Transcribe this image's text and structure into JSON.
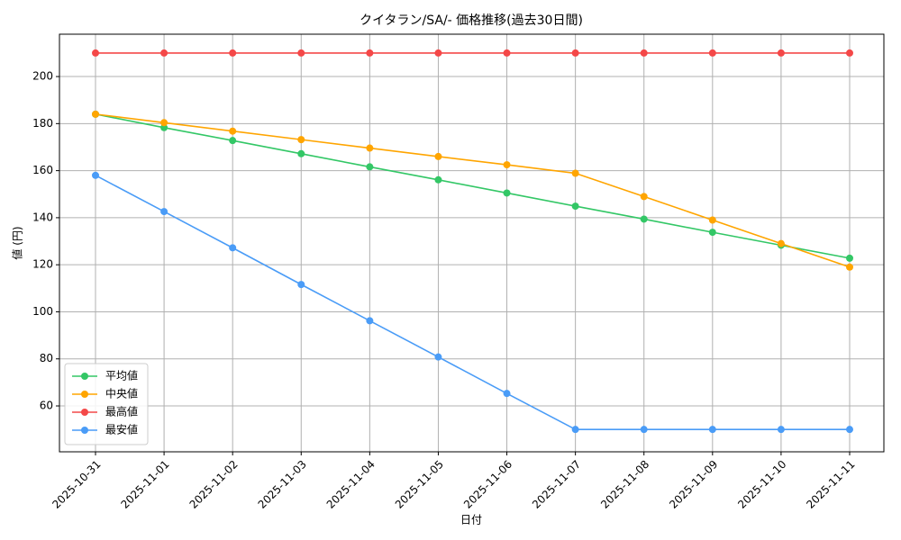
{
  "chart_data": {
    "type": "line",
    "title": "クイタラン/SA/- 価格推移(過去30日間)",
    "x_label": "日付",
    "y_label": "値 (円)",
    "categories": [
      "2025-10-31",
      "2025-11-01",
      "2025-11-02",
      "2025-11-03",
      "2025-11-04",
      "2025-11-05",
      "2025-11-06",
      "2025-11-07",
      "2025-11-08",
      "2025-11-09",
      "2025-11-10",
      "2025-11-11"
    ],
    "series": [
      {
        "name": "平均値",
        "color": "#33c766",
        "values": [
          184,
          178.3,
          172.8,
          167.2,
          161.6,
          156.1,
          150.5,
          144.9,
          139.4,
          133.8,
          128.3,
          122.8
        ]
      },
      {
        "name": "中央値",
        "color": "#ffa500",
        "values": [
          184,
          180.4,
          176.8,
          173.2,
          169.6,
          166,
          162.5,
          158.9,
          149,
          139,
          129,
          119
        ]
      },
      {
        "name": "最高値",
        "color": "#f44848",
        "values": [
          210,
          210,
          210,
          210,
          210,
          210,
          210,
          210,
          210,
          210,
          210,
          210
        ]
      },
      {
        "name": "最安値",
        "color": "#4a9cf7",
        "values": [
          158,
          142.6,
          127.2,
          111.6,
          96.2,
          80.8,
          65.3,
          50,
          50,
          50,
          50,
          50
        ]
      }
    ],
    "ylim": [
      40.5,
      218
    ],
    "yticks": [
      60,
      80,
      100,
      120,
      140,
      160,
      180,
      200
    ],
    "grid": true,
    "legend": "lower-left"
  }
}
